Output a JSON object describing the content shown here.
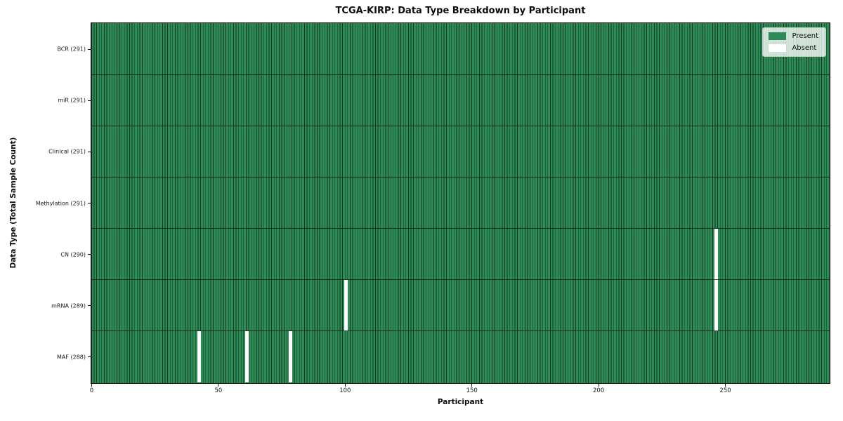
{
  "chart_data": {
    "type": "heatmap",
    "title": "TCGA-KIRP: Data Type Breakdown by Participant",
    "xlabel": "Participant",
    "ylabel": "Data Type (Total Sample Count)",
    "n_participants": 291,
    "x_ticks": [
      0,
      50,
      100,
      150,
      200,
      250
    ],
    "rows": [
      {
        "label": "BCR (291)",
        "data_type": "BCR",
        "total": 291,
        "absent_participants": []
      },
      {
        "label": "miR (291)",
        "data_type": "miR",
        "total": 291,
        "absent_participants": []
      },
      {
        "label": "Clinical (291)",
        "data_type": "Clinical",
        "total": 291,
        "absent_participants": []
      },
      {
        "label": "Methylation (291)",
        "data_type": "Methylation",
        "total": 291,
        "absent_participants": []
      },
      {
        "label": "CN (290)",
        "data_type": "CN",
        "total": 290,
        "absent_participants": [
          246
        ]
      },
      {
        "label": "mRNA (289)",
        "data_type": "mRNA",
        "total": 289,
        "absent_participants": [
          100,
          246
        ]
      },
      {
        "label": "MAF (288)",
        "data_type": "MAF",
        "total": 288,
        "absent_participants": [
          42,
          61,
          78
        ]
      }
    ],
    "legend": [
      {
        "label": "Present",
        "color": "#2e8b57"
      },
      {
        "label": "Absent",
        "color": "#ffffff"
      }
    ],
    "legend_position": "upper right",
    "grid": "row-separators",
    "colors": {
      "present": "#2e8b57",
      "absent": "#ffffff",
      "cell_edge": "#16402a",
      "axis": "#0a0a0a",
      "background": "#ffffff"
    }
  }
}
